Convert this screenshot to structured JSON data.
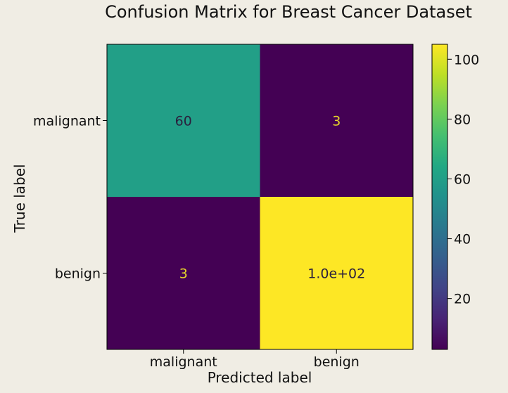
{
  "chart_data": {
    "type": "heatmap",
    "title": "Confusion Matrix for Breast Cancer Dataset",
    "xlabel": "Predicted label",
    "ylabel": "True label",
    "x_categories": [
      "malignant",
      "benign"
    ],
    "y_categories": [
      "malignant",
      "benign"
    ],
    "values": [
      [
        60,
        3
      ],
      [
        3,
        105
      ]
    ],
    "cell_labels": [
      [
        "60",
        "3"
      ],
      [
        "3",
        "1.0e+02"
      ]
    ],
    "colormap": "viridis",
    "color_range": [
      3,
      105
    ],
    "colorbar_ticks": [
      20,
      40,
      60,
      80,
      100
    ],
    "colorbar_tick_labels": [
      "20",
      "40",
      "60",
      "80",
      "100"
    ],
    "grid": false
  },
  "colors": {
    "background": "#f0ede4",
    "dark_text": "#2a1f3d",
    "light_text": "#e7d72b"
  }
}
